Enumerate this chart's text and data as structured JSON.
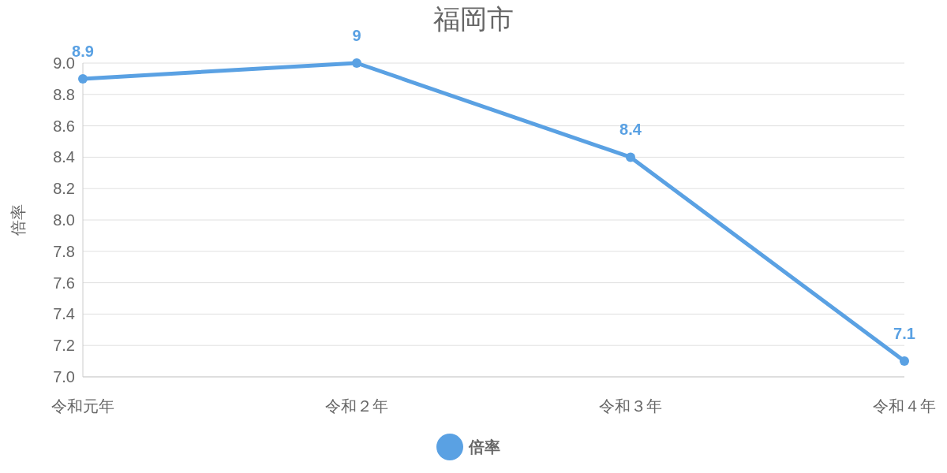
{
  "chart_data": {
    "type": "line",
    "title": "福岡市",
    "ylabel": "倍率",
    "categories": [
      "令和元年",
      "令和２年",
      "令和３年",
      "令和４年"
    ],
    "series": [
      {
        "name": "倍率",
        "color": "#5aa1e3",
        "values": [
          8.9,
          9,
          8.4,
          7.1
        ]
      }
    ],
    "ylim": [
      7.0,
      9.0
    ],
    "yticks": [
      {
        "value": 7.0,
        "label": "7.0"
      },
      {
        "value": 7.2,
        "label": "7.2"
      },
      {
        "value": 7.4,
        "label": "7.4"
      },
      {
        "value": 7.6,
        "label": "7.6"
      },
      {
        "value": 7.8,
        "label": "7.8"
      },
      {
        "value": 8.0,
        "label": "8.0"
      },
      {
        "value": 8.2,
        "label": "8.2"
      },
      {
        "value": 8.4,
        "label": "8.4"
      },
      {
        "value": 8.6,
        "label": "8.6"
      },
      {
        "value": 8.8,
        "label": "8.8"
      },
      {
        "value": 9.0,
        "label": "9.0"
      }
    ],
    "grid": "y",
    "legend": "bottom",
    "marker": "circle",
    "line_style": "solid",
    "data_labels": true
  }
}
